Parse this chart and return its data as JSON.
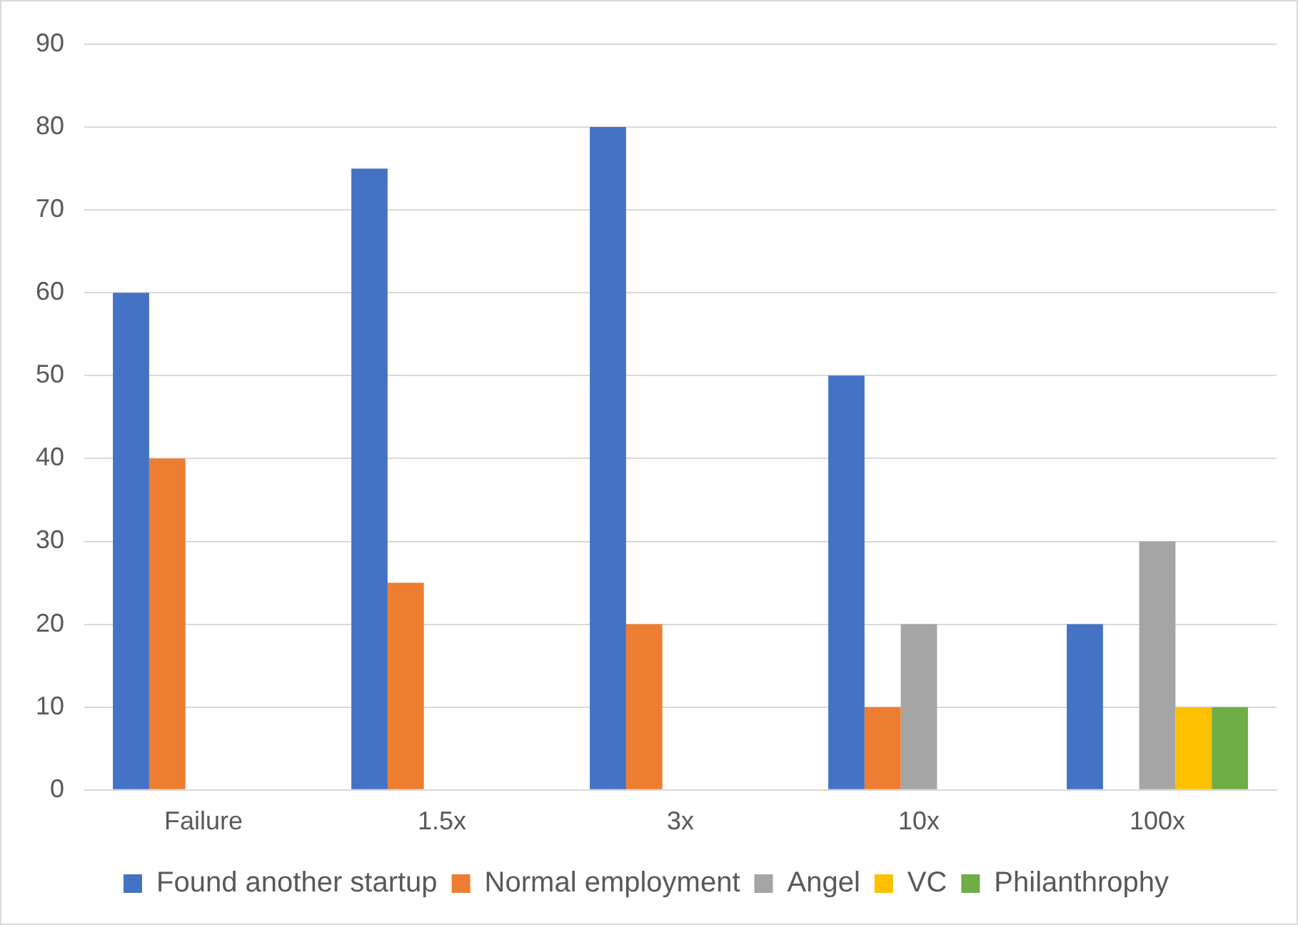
{
  "chart_data": {
    "type": "bar",
    "categories": [
      "Failure",
      "1.5x",
      "3x",
      "10x",
      "100x"
    ],
    "series": [
      {
        "name": "Found another startup",
        "color": "#4472c4",
        "values": [
          60,
          75,
          80,
          50,
          20
        ]
      },
      {
        "name": "Normal employment",
        "color": "#ed7d31",
        "values": [
          40,
          25,
          20,
          10,
          0
        ]
      },
      {
        "name": "Angel",
        "color": "#a5a5a5",
        "values": [
          0,
          0,
          0,
          20,
          30
        ]
      },
      {
        "name": "VC",
        "color": "#ffc000",
        "values": [
          0,
          0,
          0,
          0,
          10
        ]
      },
      {
        "name": "Philanthrophy",
        "color": "#70ad47",
        "values": [
          0,
          0,
          0,
          0,
          10
        ]
      }
    ],
    "ylim": [
      0,
      90
    ],
    "yticks": [
      0,
      10,
      20,
      30,
      40,
      50,
      60,
      70,
      80,
      90
    ],
    "grid": "y",
    "legend": "bottom"
  }
}
